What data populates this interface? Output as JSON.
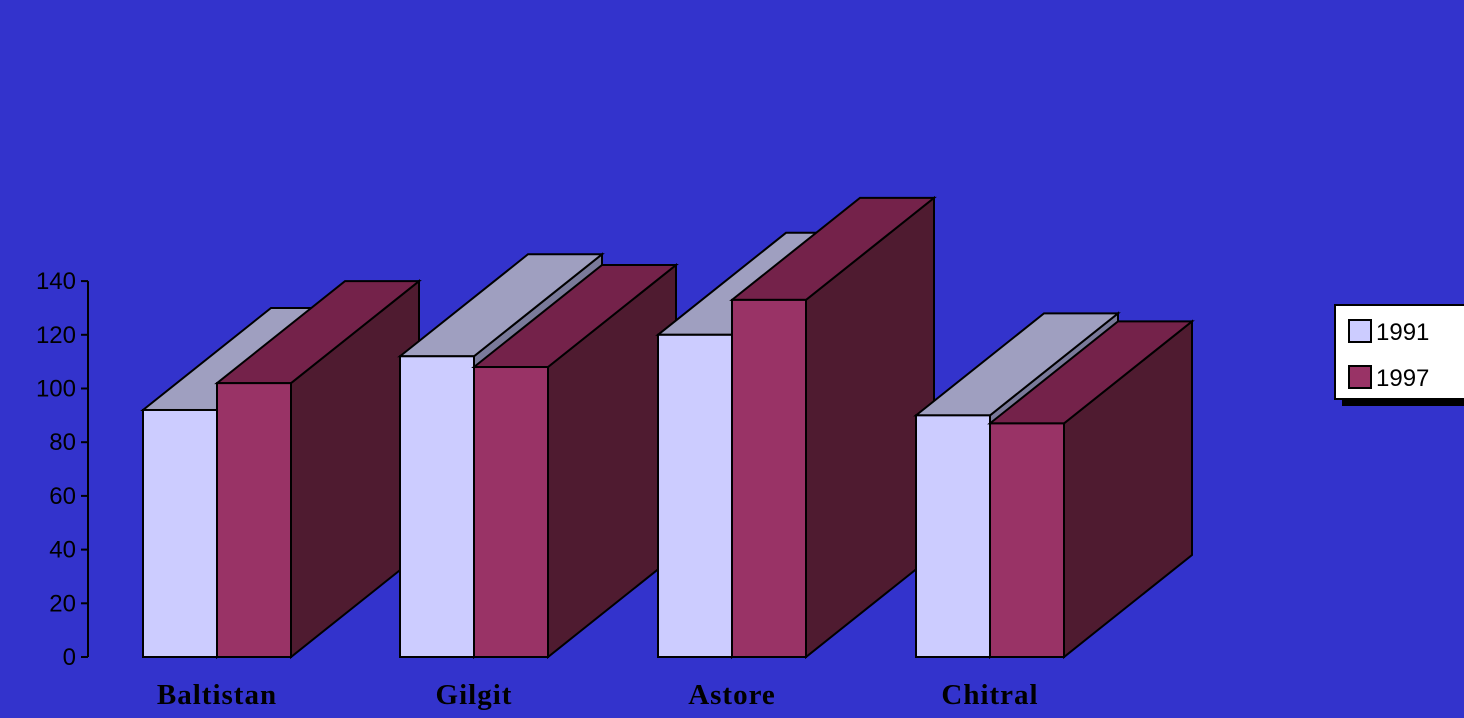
{
  "chart_data": {
    "type": "bar",
    "title": "",
    "xlabel": "",
    "ylabel": "",
    "categories": [
      "Baltistan",
      "Gilgit",
      "Astore",
      "Chitral"
    ],
    "series": [
      {
        "name": "1991",
        "values": [
          92,
          112,
          120,
          90
        ]
      },
      {
        "name": "1997",
        "values": [
          102,
          108,
          133,
          87
        ]
      }
    ],
    "ylim": [
      0,
      140
    ],
    "yticks": [
      0,
      20,
      40,
      60,
      80,
      100,
      120,
      140
    ],
    "grid": false,
    "legend_position": "right",
    "three_d": true,
    "colors": {
      "background": "#3333cc",
      "series_1991": "#ccccff",
      "series_1997": "#993366",
      "outline": "#000000"
    }
  }
}
